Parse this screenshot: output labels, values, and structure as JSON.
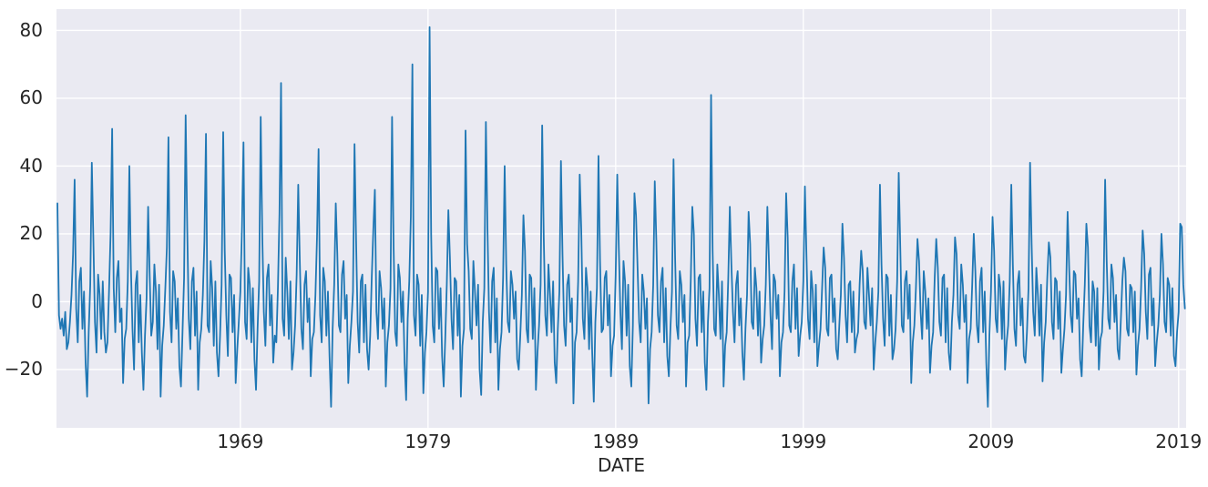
{
  "figure": {
    "background_color": "#ffffff",
    "axes_background_color": "#eaeaf2",
    "grid_color": "#ffffff",
    "tick_label_color": "#262626"
  },
  "chart_data": {
    "type": "line",
    "title": "",
    "xlabel": "DATE",
    "ylabel": "",
    "legend": null,
    "grid": true,
    "line_color": "#1f77b4",
    "line_width": 1.8,
    "xlim": [
      1959.2,
      2019.4
    ],
    "ylim": [
      -37.2,
      86.3
    ],
    "x_ticks": [
      {
        "value": 1969,
        "label": "1969"
      },
      {
        "value": 1979,
        "label": "1979"
      },
      {
        "value": 1989,
        "label": "1989"
      },
      {
        "value": 1999,
        "label": "1999"
      },
      {
        "value": 2009,
        "label": "2009"
      },
      {
        "value": 2019,
        "label": "2019"
      }
    ],
    "y_ticks": [
      {
        "value": -20,
        "label": "−20"
      },
      {
        "value": 0,
        "label": "0"
      },
      {
        "value": 20,
        "label": "20"
      },
      {
        "value": 40,
        "label": "40"
      },
      {
        "value": 60,
        "label": "60"
      },
      {
        "value": 80,
        "label": "80"
      }
    ],
    "x_start_year": 1959.25,
    "x_step_years": 0.0833333,
    "values": [
      29,
      -4,
      -8,
      -5,
      -10,
      -3,
      -14,
      -12,
      -6,
      2,
      14,
      36,
      -2,
      -12,
      6,
      10,
      -8,
      3,
      -18,
      -28,
      -9,
      5,
      41,
      18,
      -6,
      -15,
      8,
      2,
      -11,
      6,
      -9,
      -15,
      -12,
      3,
      20,
      51,
      4,
      -9,
      7,
      12,
      -6,
      -2,
      -24,
      -11,
      -8,
      6,
      40,
      10,
      -8,
      -20,
      5,
      9,
      -12,
      2,
      -15,
      -26,
      -10,
      1,
      28,
      8,
      -10,
      -6,
      11,
      3,
      -14,
      5,
      -28,
      -13,
      -7,
      4,
      16,
      48.5,
      -3,
      -12,
      9,
      6,
      -8,
      1,
      -19,
      -25,
      -9,
      7,
      55,
      22,
      -5,
      -14,
      6,
      10,
      -10,
      3,
      -26,
      -12,
      -8,
      2,
      18,
      49.5,
      -7,
      -9,
      12,
      4,
      -13,
      6,
      -15,
      -22,
      -10,
      5,
      50,
      15,
      -4,
      -16,
      8,
      7,
      -9,
      2,
      -24,
      -14,
      -6,
      3,
      22,
      47,
      -6,
      -11,
      10,
      5,
      -12,
      4,
      -17,
      -26,
      -8,
      6,
      54.5,
      20,
      -3,
      -13,
      7,
      11,
      -7,
      2,
      -18,
      -10,
      -12,
      4,
      26,
      64.5,
      -5,
      -10,
      13,
      3,
      -11,
      6,
      -20,
      -15,
      -7,
      8,
      34.5,
      12,
      -8,
      -14,
      5,
      9,
      -6,
      1,
      -22,
      -11,
      -9,
      2,
      19,
      45,
      -4,
      -12,
      10,
      6,
      -10,
      3,
      -16,
      -31,
      -8,
      5,
      29,
      14,
      -7,
      -9,
      8,
      12,
      -5,
      2,
      -24,
      -13,
      -6,
      3,
      46.5,
      18,
      -6,
      -15,
      6,
      8,
      -12,
      5,
      -14,
      -20,
      -10,
      7,
      21,
      33,
      -3,
      -11,
      9,
      4,
      -8,
      1,
      -25,
      -12,
      -7,
      4,
      54.5,
      16,
      -9,
      -13,
      11,
      7,
      -6,
      3,
      -18,
      -29,
      -5,
      6,
      25,
      70,
      -4,
      -10,
      8,
      5,
      -13,
      2,
      -27,
      -15,
      -9,
      3,
      81,
      20,
      -7,
      -12,
      10,
      9,
      -8,
      4,
      -16,
      -25,
      -11,
      5,
      27,
      13,
      -5,
      -14,
      7,
      6,
      -10,
      2,
      -28,
      -13,
      -8,
      50.5,
      17,
      9,
      -8,
      -11,
      12,
      3,
      -7,
      5,
      -20,
      -27.5,
      -6,
      4,
      53,
      22,
      -3,
      -15,
      6,
      10,
      -12,
      1,
      -26,
      -14,
      -9,
      7,
      40,
      11,
      -6,
      -9,
      9,
      5,
      -5,
      3,
      -17,
      -20,
      -10,
      2,
      25.5,
      15,
      -8,
      -12,
      8,
      7,
      -11,
      4,
      -26,
      -15,
      -7,
      5,
      52,
      19,
      -4,
      -10,
      11,
      2,
      -9,
      6,
      -18,
      -24,
      -8,
      3,
      41.5,
      14,
      -7,
      -13,
      5,
      8,
      -6,
      1,
      -30,
      -12,
      -9,
      6,
      37.5,
      21,
      -5,
      -11,
      10,
      4,
      -14,
      3,
      -15,
      -29.5,
      -6,
      4,
      43,
      12,
      -9,
      -8,
      7,
      9,
      -7,
      2,
      -22,
      -13,
      -10,
      8,
      37.5,
      16,
      -3,
      -14,
      12,
      6,
      -10,
      5,
      -19,
      -25,
      -7,
      32,
      25.5,
      10,
      -6,
      -12,
      8,
      3,
      -8,
      1,
      -30,
      -14,
      -9,
      5,
      35.5,
      18,
      -4,
      -9,
      6,
      10,
      -12,
      4,
      -16,
      -22,
      -8,
      3,
      42,
      13,
      -7,
      -11,
      9,
      5,
      -6,
      2,
      -25,
      -12,
      -10,
      6,
      28,
      20,
      -5,
      -13,
      7,
      8,
      -9,
      3,
      -18,
      -26,
      -6,
      4,
      61,
      15,
      -8,
      -10,
      11,
      2,
      -11,
      6,
      -25,
      -13,
      -9,
      7,
      28,
      11,
      -3,
      -12,
      5,
      9,
      -7,
      1,
      -15,
      -23,
      -8,
      2,
      26.5,
      17,
      -6,
      -8,
      10,
      4,
      -10,
      3,
      -18,
      -11,
      -7,
      5,
      28,
      12,
      -4,
      -14,
      8,
      6,
      -5,
      2,
      -22,
      -12,
      -9,
      3,
      32,
      19,
      -7,
      -9,
      6,
      11,
      -8,
      4,
      -16,
      -10,
      -6,
      6,
      34,
      14,
      -5,
      -11,
      9,
      3,
      -12,
      5,
      -19,
      -13,
      -8,
      4,
      16,
      10,
      -8,
      -10,
      7,
      8,
      -6,
      1,
      -14,
      -17,
      -7,
      2,
      23,
      13,
      -4,
      -12,
      5,
      6,
      -9,
      3,
      -15,
      -11,
      -9,
      5,
      15,
      9,
      -6,
      -8,
      10,
      2,
      -7,
      4,
      -20,
      -12,
      -6,
      3,
      34.5,
      11,
      -5,
      -13,
      8,
      7,
      -10,
      2,
      -17,
      -14,
      -8,
      6,
      38,
      16,
      -7,
      -9,
      6,
      9,
      -5,
      5,
      -24,
      -12,
      -7,
      4,
      18.5,
      12,
      -3,
      -11,
      9,
      3,
      -8,
      1,
      -21,
      -13,
      -9,
      7,
      18.5,
      10,
      -6,
      -10,
      7,
      8,
      -12,
      4,
      -15,
      -20,
      -6,
      2,
      19,
      14,
      -4,
      -8,
      11,
      5,
      -6,
      2,
      -24,
      -11,
      -8,
      5,
      20,
      9,
      -7,
      -12,
      6,
      10,
      -9,
      3,
      -18,
      -31,
      -10,
      3,
      25,
      15,
      -5,
      -9,
      8,
      4,
      -11,
      6,
      -20,
      -12,
      -7,
      6,
      34.5,
      11,
      -8,
      -13,
      5,
      9,
      -7,
      1,
      -16,
      -18,
      -9,
      4,
      41,
      17,
      -3,
      -10,
      10,
      2,
      -10,
      5,
      -23.5,
      -12,
      -6,
      7,
      17.5,
      13,
      -6,
      -11,
      7,
      6,
      -8,
      3,
      -21,
      -14,
      -8,
      2,
      26.5,
      10,
      -4,
      -9,
      9,
      8,
      -5,
      1,
      -17,
      -22,
      -7,
      5,
      23,
      16,
      -7,
      -12,
      6,
      3,
      -13,
      4,
      -20,
      -11,
      -9,
      3,
      36,
      12,
      -5,
      -8,
      11,
      7,
      -6,
      2,
      -14,
      -17,
      -6,
      6,
      13,
      9,
      -8,
      -10,
      5,
      4,
      -9,
      3,
      -21.5,
      -13,
      -8,
      4,
      21,
      14,
      -3,
      -11,
      8,
      10,
      -7,
      1,
      -19,
      -12,
      -7,
      2,
      20,
      11,
      -6,
      -9,
      7,
      5,
      -10,
      4,
      -16,
      -19,
      -9,
      -3,
      23,
      22,
      5,
      -2
    ]
  }
}
